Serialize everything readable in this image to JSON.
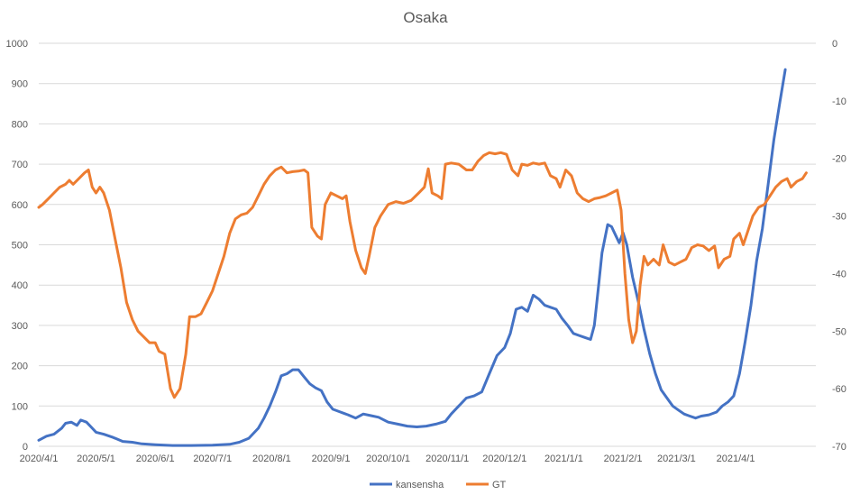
{
  "chart_data": {
    "type": "line",
    "title": "Osaka",
    "x_ticks": [
      "2020/4/1",
      "2020/5/1",
      "2020/6/1",
      "2020/7/1",
      "2020/8/1",
      "2020/9/1",
      "2020/10/1",
      "2020/11/1",
      "2020/12/1",
      "2021/1/1",
      "2021/2/1",
      "2021/3/1",
      "2021/4/1"
    ],
    "y_left": {
      "min": 0,
      "max": 1000,
      "step": 100,
      "ticks": [
        "0",
        "100",
        "200",
        "300",
        "400",
        "500",
        "600",
        "700",
        "800",
        "900",
        "1000"
      ]
    },
    "y_right": {
      "min": -70,
      "max": 0,
      "step": 10,
      "ticks": [
        "-70",
        "-60",
        "-50",
        "-40",
        "-30",
        "-20",
        "-10",
        "0"
      ]
    },
    "grid": true,
    "legend_position": "bottom",
    "series": [
      {
        "name": "kansensha",
        "axis": "left",
        "color": "#4472C4",
        "points": [
          [
            "2020/4/1",
            15
          ],
          [
            "2020/4/5",
            25
          ],
          [
            "2020/4/9",
            30
          ],
          [
            "2020/4/13",
            45
          ],
          [
            "2020/4/15",
            57
          ],
          [
            "2020/4/18",
            60
          ],
          [
            "2020/4/21",
            52
          ],
          [
            "2020/4/23",
            65
          ],
          [
            "2020/4/26",
            60
          ],
          [
            "2020/4/29",
            45
          ],
          [
            "2020/5/1",
            35
          ],
          [
            "2020/5/5",
            30
          ],
          [
            "2020/5/10",
            22
          ],
          [
            "2020/5/15",
            12
          ],
          [
            "2020/5/20",
            10
          ],
          [
            "2020/5/25",
            6
          ],
          [
            "2020/6/1",
            4
          ],
          [
            "2020/6/10",
            2
          ],
          [
            "2020/6/20",
            2
          ],
          [
            "2020/7/1",
            3
          ],
          [
            "2020/7/10",
            5
          ],
          [
            "2020/7/15",
            10
          ],
          [
            "2020/7/20",
            20
          ],
          [
            "2020/7/25",
            45
          ],
          [
            "2020/7/28",
            70
          ],
          [
            "2020/7/31",
            100
          ],
          [
            "2020/8/3",
            135
          ],
          [
            "2020/8/6",
            175
          ],
          [
            "2020/8/9",
            180
          ],
          [
            "2020/8/12",
            190
          ],
          [
            "2020/8/15",
            190
          ],
          [
            "2020/8/18",
            172
          ],
          [
            "2020/8/21",
            155
          ],
          [
            "2020/8/24",
            145
          ],
          [
            "2020/8/27",
            138
          ],
          [
            "2020/8/30",
            110
          ],
          [
            "2020/9/2",
            92
          ],
          [
            "2020/9/6",
            85
          ],
          [
            "2020/9/10",
            78
          ],
          [
            "2020/9/14",
            70
          ],
          [
            "2020/9/18",
            80
          ],
          [
            "2020/9/22",
            76
          ],
          [
            "2020/9/26",
            72
          ],
          [
            "2020/10/1",
            60
          ],
          [
            "2020/10/6",
            55
          ],
          [
            "2020/10/11",
            50
          ],
          [
            "2020/10/16",
            48
          ],
          [
            "2020/10/21",
            50
          ],
          [
            "2020/10/26",
            55
          ],
          [
            "2020/10/31",
            62
          ],
          [
            "2020/11/3",
            80
          ],
          [
            "2020/11/7",
            100
          ],
          [
            "2020/11/11",
            120
          ],
          [
            "2020/11/15",
            125
          ],
          [
            "2020/11/19",
            135
          ],
          [
            "2020/11/23",
            180
          ],
          [
            "2020/11/27",
            225
          ],
          [
            "2020/12/1",
            245
          ],
          [
            "2020/12/4",
            280
          ],
          [
            "2020/12/7",
            340
          ],
          [
            "2020/12/10",
            345
          ],
          [
            "2020/12/13",
            335
          ],
          [
            "2020/12/16",
            375
          ],
          [
            "2020/12/19",
            365
          ],
          [
            "2020/12/22",
            350
          ],
          [
            "2020/12/25",
            345
          ],
          [
            "2020/12/28",
            340
          ],
          [
            "2020/12/31",
            318
          ],
          [
            "2021/1/3",
            300
          ],
          [
            "2021/1/6",
            280
          ],
          [
            "2021/1/9",
            275
          ],
          [
            "2021/1/12",
            270
          ],
          [
            "2021/1/15",
            265
          ],
          [
            "2021/1/17",
            300
          ],
          [
            "2021/1/19",
            390
          ],
          [
            "2021/1/21",
            480
          ],
          [
            "2021/1/24",
            550
          ],
          [
            "2021/1/26",
            545
          ],
          [
            "2021/1/28",
            525
          ],
          [
            "2021/1/30",
            505
          ],
          [
            "2021/2/1",
            530
          ],
          [
            "2021/2/3",
            500
          ],
          [
            "2021/2/6",
            420
          ],
          [
            "2021/2/9",
            360
          ],
          [
            "2021/2/12",
            290
          ],
          [
            "2021/2/15",
            230
          ],
          [
            "2021/2/18",
            180
          ],
          [
            "2021/2/21",
            140
          ],
          [
            "2021/2/24",
            120
          ],
          [
            "2021/2/27",
            100
          ],
          [
            "2021/3/2",
            90
          ],
          [
            "2021/3/5",
            80
          ],
          [
            "2021/3/8",
            75
          ],
          [
            "2021/3/11",
            70
          ],
          [
            "2021/3/14",
            75
          ],
          [
            "2021/3/18",
            78
          ],
          [
            "2021/3/22",
            85
          ],
          [
            "2021/3/25",
            100
          ],
          [
            "2021/3/28",
            110
          ],
          [
            "2021/3/31",
            125
          ],
          [
            "2021/4/3",
            180
          ],
          [
            "2021/4/6",
            260
          ],
          [
            "2021/4/9",
            350
          ],
          [
            "2021/4/12",
            460
          ],
          [
            "2021/4/15",
            540
          ],
          [
            "2021/4/18",
            650
          ],
          [
            "2021/4/21",
            760
          ],
          [
            "2021/4/24",
            850
          ],
          [
            "2021/4/27",
            935
          ]
        ]
      },
      {
        "name": "GT",
        "axis": "right",
        "color": "#ED7D31",
        "points": [
          [
            "2020/4/1",
            -28.5
          ],
          [
            "2020/4/3",
            -28
          ],
          [
            "2020/4/6",
            -27
          ],
          [
            "2020/4/9",
            -26
          ],
          [
            "2020/4/12",
            -25
          ],
          [
            "2020/4/15",
            -24.5
          ],
          [
            "2020/4/17",
            -23.8
          ],
          [
            "2020/4/19",
            -24.5
          ],
          [
            "2020/4/22",
            -23.5
          ],
          [
            "2020/4/25",
            -22.5
          ],
          [
            "2020/4/27",
            -22.0
          ],
          [
            "2020/4/29",
            -25
          ],
          [
            "2020/5/1",
            -26
          ],
          [
            "2020/5/3",
            -25
          ],
          [
            "2020/5/5",
            -26
          ],
          [
            "2020/5/8",
            -29
          ],
          [
            "2020/5/11",
            -34
          ],
          [
            "2020/5/14",
            -39
          ],
          [
            "2020/5/17",
            -45
          ],
          [
            "2020/5/20",
            -48
          ],
          [
            "2020/5/23",
            -50
          ],
          [
            "2020/5/26",
            -51
          ],
          [
            "2020/5/29",
            -52
          ],
          [
            "2020/6/1",
            -52
          ],
          [
            "2020/6/3",
            -53.5
          ],
          [
            "2020/6/6",
            -54
          ],
          [
            "2020/6/9",
            -60
          ],
          [
            "2020/6/11",
            -61.5
          ],
          [
            "2020/6/14",
            -60
          ],
          [
            "2020/6/17",
            -54
          ],
          [
            "2020/6/19",
            -47.5
          ],
          [
            "2020/6/22",
            -47.5
          ],
          [
            "2020/6/25",
            -47
          ],
          [
            "2020/6/28",
            -45
          ],
          [
            "2020/7/1",
            -43
          ],
          [
            "2020/7/4",
            -40
          ],
          [
            "2020/7/7",
            -37
          ],
          [
            "2020/7/10",
            -33
          ],
          [
            "2020/7/13",
            -30.5
          ],
          [
            "2020/7/16",
            -29.8
          ],
          [
            "2020/7/19",
            -29.5
          ],
          [
            "2020/7/22",
            -28.5
          ],
          [
            "2020/7/25",
            -26.5
          ],
          [
            "2020/7/28",
            -24.5
          ],
          [
            "2020/7/31",
            -23
          ],
          [
            "2020/8/3",
            -22
          ],
          [
            "2020/8/6",
            -21.5
          ],
          [
            "2020/8/9",
            -22.5
          ],
          [
            "2020/8/12",
            -22.3
          ],
          [
            "2020/8/15",
            -22.2
          ],
          [
            "2020/8/18",
            -22
          ],
          [
            "2020/8/20",
            -22.5
          ],
          [
            "2020/8/22",
            -32
          ],
          [
            "2020/8/25",
            -33.5
          ],
          [
            "2020/8/27",
            -34
          ],
          [
            "2020/8/29",
            -28
          ],
          [
            "2020/9/1",
            -26
          ],
          [
            "2020/9/4",
            -26.5
          ],
          [
            "2020/9/7",
            -27
          ],
          [
            "2020/9/9",
            -26.5
          ],
          [
            "2020/9/11",
            -31
          ],
          [
            "2020/9/14",
            -36
          ],
          [
            "2020/9/17",
            -39
          ],
          [
            "2020/9/19",
            -40
          ],
          [
            "2020/9/21",
            -37
          ],
          [
            "2020/9/24",
            -32
          ],
          [
            "2020/9/27",
            -30
          ],
          [
            "2020/10/1",
            -28
          ],
          [
            "2020/10/5",
            -27.5
          ],
          [
            "2020/10/9",
            -27.8
          ],
          [
            "2020/10/13",
            -27.3
          ],
          [
            "2020/10/17",
            -26
          ],
          [
            "2020/10/20",
            -25
          ],
          [
            "2020/10/22",
            -21.8
          ],
          [
            "2020/10/24",
            -26
          ],
          [
            "2020/10/27",
            -26.5
          ],
          [
            "2020/10/29",
            -27
          ],
          [
            "2020/10/31",
            -21
          ],
          [
            "2020/11/3",
            -20.8
          ],
          [
            "2020/11/7",
            -21
          ],
          [
            "2020/11/11",
            -22
          ],
          [
            "2020/11/14",
            -22
          ],
          [
            "2020/11/17",
            -20.5
          ],
          [
            "2020/11/20",
            -19.5
          ],
          [
            "2020/11/23",
            -19
          ],
          [
            "2020/11/26",
            -19.2
          ],
          [
            "2020/11/29",
            -19
          ],
          [
            "2020/12/2",
            -19.3
          ],
          [
            "2020/12/5",
            -22
          ],
          [
            "2020/12/8",
            -23
          ],
          [
            "2020/12/10",
            -21
          ],
          [
            "2020/12/13",
            -21.2
          ],
          [
            "2020/12/16",
            -20.8
          ],
          [
            "2020/12/19",
            -21
          ],
          [
            "2020/12/22",
            -20.8
          ],
          [
            "2020/12/25",
            -23
          ],
          [
            "2020/12/28",
            -23.5
          ],
          [
            "2020/12/30",
            -25
          ],
          [
            "2021/1/2",
            -22
          ],
          [
            "2021/1/5",
            -23
          ],
          [
            "2021/1/8",
            -26
          ],
          [
            "2021/1/11",
            -27
          ],
          [
            "2021/1/14",
            -27.5
          ],
          [
            "2021/1/17",
            -27
          ],
          [
            "2021/1/20",
            -26.8
          ],
          [
            "2021/1/23",
            -26.5
          ],
          [
            "2021/1/26",
            -26
          ],
          [
            "2021/1/29",
            -25.5
          ],
          [
            "2021/1/31",
            -29
          ],
          [
            "2021/2/2",
            -40
          ],
          [
            "2021/2/4",
            -48
          ],
          [
            "2021/2/6",
            -52
          ],
          [
            "2021/2/8",
            -50
          ],
          [
            "2021/2/10",
            -42
          ],
          [
            "2021/2/12",
            -37
          ],
          [
            "2021/2/14",
            -38.5
          ],
          [
            "2021/2/17",
            -37.5
          ],
          [
            "2021/2/20",
            -38.5
          ],
          [
            "2021/2/22",
            -35
          ],
          [
            "2021/2/25",
            -38
          ],
          [
            "2021/2/28",
            -38.5
          ],
          [
            "2021/3/3",
            -38
          ],
          [
            "2021/3/6",
            -37.5
          ],
          [
            "2021/3/9",
            -35.5
          ],
          [
            "2021/3/12",
            -35
          ],
          [
            "2021/3/15",
            -35.2
          ],
          [
            "2021/3/18",
            -36
          ],
          [
            "2021/3/21",
            -35.2
          ],
          [
            "2021/3/23",
            -39
          ],
          [
            "2021/3/26",
            -37.5
          ],
          [
            "2021/3/29",
            -37
          ],
          [
            "2021/3/31",
            -34
          ],
          [
            "2021/4/3",
            -33
          ],
          [
            "2021/4/5",
            -35
          ],
          [
            "2021/4/7",
            -33
          ],
          [
            "2021/4/10",
            -30
          ],
          [
            "2021/4/13",
            -28.5
          ],
          [
            "2021/4/16",
            -28
          ],
          [
            "2021/4/19",
            -26.5
          ],
          [
            "2021/4/22",
            -25
          ],
          [
            "2021/4/25",
            -24
          ],
          [
            "2021/4/28",
            -23.5
          ],
          [
            "2021/4/30",
            -25
          ],
          [
            "2021/5/3",
            -24
          ],
          [
            "2021/5/6",
            -23.5
          ],
          [
            "2021/5/8",
            -22.5
          ]
        ]
      }
    ]
  }
}
